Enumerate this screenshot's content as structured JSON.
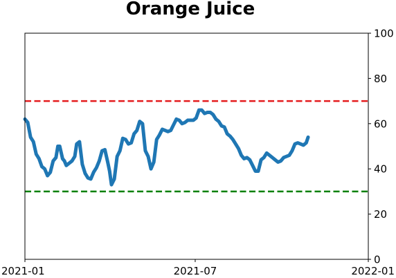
{
  "chart_data": {
    "type": "line",
    "title": "Orange Juice",
    "xlabel": "",
    "ylabel": "",
    "x_range": [
      "2021-01-01",
      "2022-01-01"
    ],
    "ylim": [
      0,
      100
    ],
    "y_axis_side": "right",
    "x_ticks": [
      "2021-01",
      "2021-07",
      "2022-01"
    ],
    "y_ticks": [
      0,
      20,
      40,
      60,
      80,
      100
    ],
    "grid": false,
    "legend": "none",
    "reference_lines": [
      {
        "y": 70,
        "color": "#e41a1c",
        "style": "dashed"
      },
      {
        "y": 30,
        "color": "#008000",
        "style": "dashed"
      }
    ],
    "series": [
      {
        "color": "#1f77b4",
        "points": [
          [
            "2021-01-01",
            62
          ],
          [
            "2021-01-04",
            60.5
          ],
          [
            "2021-01-07",
            54
          ],
          [
            "2021-01-10",
            52
          ],
          [
            "2021-01-13",
            46.5
          ],
          [
            "2021-01-16",
            44.5
          ],
          [
            "2021-01-19",
            41
          ],
          [
            "2021-01-22",
            40
          ],
          [
            "2021-01-25",
            37
          ],
          [
            "2021-01-28",
            38.5
          ],
          [
            "2021-01-31",
            43.5
          ],
          [
            "2021-02-03",
            45
          ],
          [
            "2021-02-05",
            50
          ],
          [
            "2021-02-07",
            50
          ],
          [
            "2021-02-10",
            44.5
          ],
          [
            "2021-02-12",
            43.5
          ],
          [
            "2021-02-14",
            41.5
          ],
          [
            "2021-02-17",
            42.5
          ],
          [
            "2021-02-20",
            43.5
          ],
          [
            "2021-02-23",
            45.5
          ],
          [
            "2021-02-25",
            51
          ],
          [
            "2021-02-28",
            52
          ],
          [
            "2021-03-03",
            42
          ],
          [
            "2021-03-06",
            38
          ],
          [
            "2021-03-09",
            36
          ],
          [
            "2021-03-12",
            35.5
          ],
          [
            "2021-03-15",
            38.5
          ],
          [
            "2021-03-18",
            40.5
          ],
          [
            "2021-03-21",
            43.5
          ],
          [
            "2021-03-24",
            48
          ],
          [
            "2021-03-27",
            48.5
          ],
          [
            "2021-03-30",
            43
          ],
          [
            "2021-04-01",
            39
          ],
          [
            "2021-04-03",
            33
          ],
          [
            "2021-04-06",
            35.5
          ],
          [
            "2021-04-09",
            45.5
          ],
          [
            "2021-04-12",
            48
          ],
          [
            "2021-04-15",
            53.5
          ],
          [
            "2021-04-18",
            53
          ],
          [
            "2021-04-21",
            51
          ],
          [
            "2021-04-24",
            51.5
          ],
          [
            "2021-04-27",
            55.5
          ],
          [
            "2021-04-30",
            57
          ],
          [
            "2021-05-03",
            61
          ],
          [
            "2021-05-06",
            60
          ],
          [
            "2021-05-09",
            48
          ],
          [
            "2021-05-12",
            45.5
          ],
          [
            "2021-05-15",
            40
          ],
          [
            "2021-05-18",
            43
          ],
          [
            "2021-05-21",
            53
          ],
          [
            "2021-05-24",
            55
          ],
          [
            "2021-05-27",
            57.5
          ],
          [
            "2021-05-30",
            57
          ],
          [
            "2021-06-02",
            56.5
          ],
          [
            "2021-06-05",
            57
          ],
          [
            "2021-06-08",
            59.5
          ],
          [
            "2021-06-11",
            62
          ],
          [
            "2021-06-14",
            61.5
          ],
          [
            "2021-06-17",
            60
          ],
          [
            "2021-06-20",
            60.5
          ],
          [
            "2021-06-23",
            61.5
          ],
          [
            "2021-06-26",
            61.5
          ],
          [
            "2021-06-29",
            61.5
          ],
          [
            "2021-07-02",
            62.5
          ],
          [
            "2021-07-05",
            66
          ],
          [
            "2021-07-08",
            66
          ],
          [
            "2021-07-11",
            64.5
          ],
          [
            "2021-07-14",
            65
          ],
          [
            "2021-07-17",
            65
          ],
          [
            "2021-07-20",
            64
          ],
          [
            "2021-07-23",
            62
          ],
          [
            "2021-07-26",
            61
          ],
          [
            "2021-07-29",
            59
          ],
          [
            "2021-08-01",
            58.5
          ],
          [
            "2021-08-04",
            55.5
          ],
          [
            "2021-08-07",
            54.5
          ],
          [
            "2021-08-10",
            53
          ],
          [
            "2021-08-13",
            51
          ],
          [
            "2021-08-16",
            49
          ],
          [
            "2021-08-19",
            46
          ],
          [
            "2021-08-22",
            44.5
          ],
          [
            "2021-08-25",
            45
          ],
          [
            "2021-08-28",
            44
          ],
          [
            "2021-08-31",
            41.5
          ],
          [
            "2021-09-03",
            39
          ],
          [
            "2021-09-06",
            39
          ],
          [
            "2021-09-09",
            44
          ],
          [
            "2021-09-12",
            45
          ],
          [
            "2021-09-15",
            47
          ],
          [
            "2021-09-18",
            46
          ],
          [
            "2021-09-21",
            45
          ],
          [
            "2021-09-24",
            44
          ],
          [
            "2021-09-27",
            43
          ],
          [
            "2021-09-30",
            43.5
          ],
          [
            "2021-10-03",
            45
          ],
          [
            "2021-10-06",
            45.5
          ],
          [
            "2021-10-09",
            46
          ],
          [
            "2021-10-12",
            48
          ],
          [
            "2021-10-15",
            51
          ],
          [
            "2021-10-18",
            51.5
          ],
          [
            "2021-10-21",
            51
          ],
          [
            "2021-10-24",
            50.5
          ],
          [
            "2021-10-27",
            51.5
          ],
          [
            "2021-10-29",
            54
          ]
        ]
      }
    ]
  }
}
